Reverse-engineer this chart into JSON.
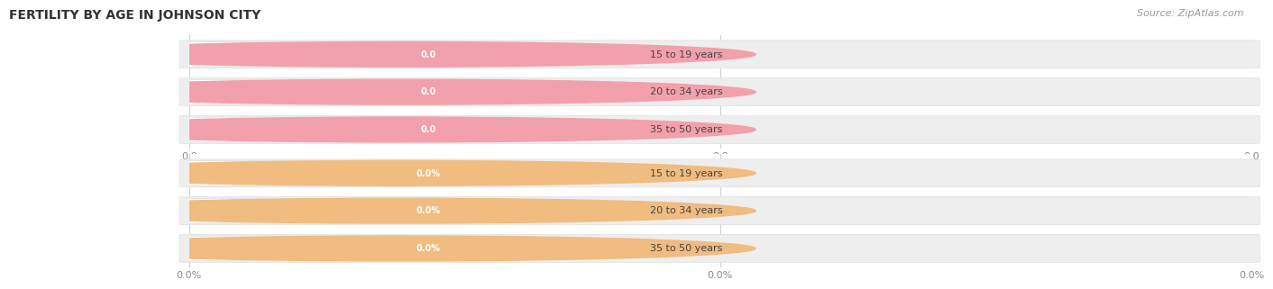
{
  "title": "FERTILITY BY AGE IN JOHNSON CITY",
  "source": "Source: ZipAtlas.com",
  "top_section": {
    "labels": [
      "15 to 19 years",
      "20 to 34 years",
      "35 to 50 years"
    ],
    "values": [
      0.0,
      0.0,
      0.0
    ],
    "bar_color": "#f2a0ac",
    "x_tick_labels": [
      "0.0",
      "0.0",
      "0.0"
    ]
  },
  "bottom_section": {
    "labels": [
      "15 to 19 years",
      "20 to 34 years",
      "35 to 50 years"
    ],
    "values": [
      0.0,
      0.0,
      0.0
    ],
    "bar_color": "#f0bc80",
    "x_tick_labels": [
      "0.0%",
      "0.0%",
      "0.0%"
    ]
  },
  "title_fontsize": 10,
  "source_fontsize": 8,
  "label_fontsize": 8,
  "value_fontsize": 7
}
